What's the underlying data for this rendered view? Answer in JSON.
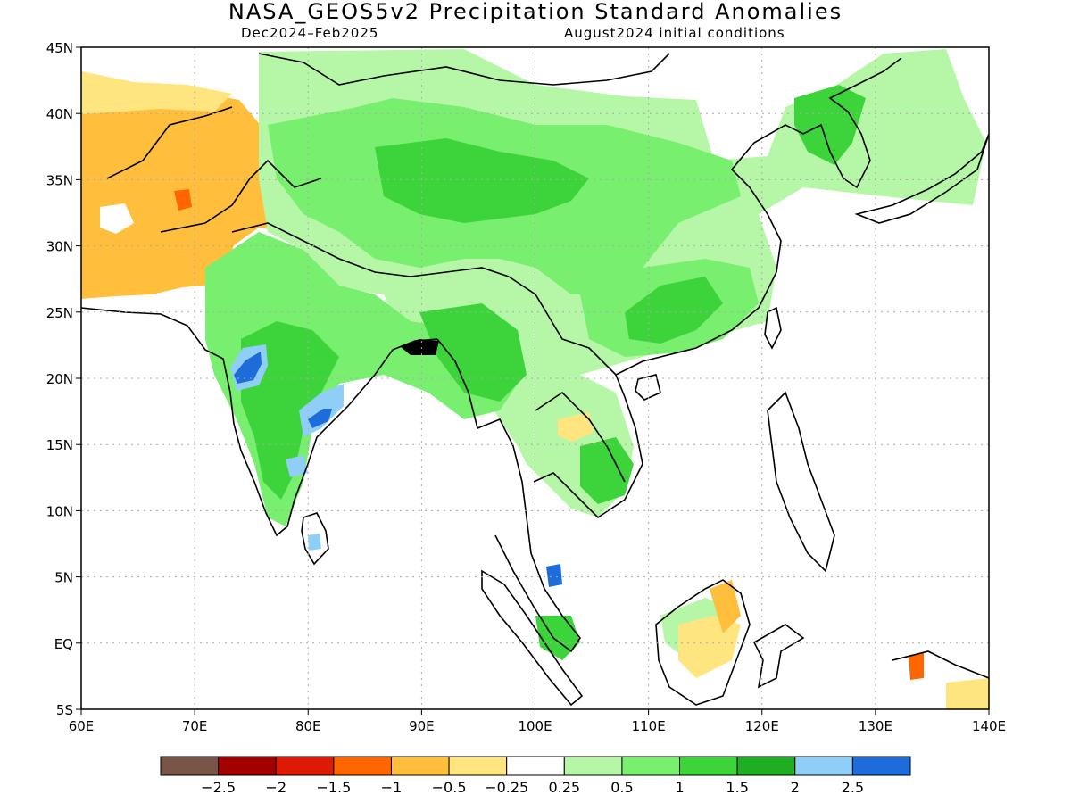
{
  "title": "NASA_GEOS5v2 Precipitation Standard Anomalies",
  "subtitle_left": "Dec2024–Feb2025",
  "subtitle_right": "August2024 initial conditions",
  "map": {
    "lon_range": [
      60,
      140
    ],
    "lat_range": [
      -5,
      45
    ],
    "lon_ticks": [
      {
        "value": 60,
        "label": "60E"
      },
      {
        "value": 70,
        "label": "70E"
      },
      {
        "value": 80,
        "label": "80E"
      },
      {
        "value": 90,
        "label": "90E"
      },
      {
        "value": 100,
        "label": "100E"
      },
      {
        "value": 110,
        "label": "110E"
      },
      {
        "value": 120,
        "label": "120E"
      },
      {
        "value": 130,
        "label": "130E"
      },
      {
        "value": 140,
        "label": "140E"
      }
    ],
    "lat_ticks": [
      {
        "value": 45,
        "label": "45N"
      },
      {
        "value": 40,
        "label": "40N"
      },
      {
        "value": 35,
        "label": "35N"
      },
      {
        "value": 30,
        "label": "30N"
      },
      {
        "value": 25,
        "label": "25N"
      },
      {
        "value": 20,
        "label": "20N"
      },
      {
        "value": 15,
        "label": "15N"
      },
      {
        "value": 10,
        "label": "10N"
      },
      {
        "value": 5,
        "label": "5N"
      },
      {
        "value": 0,
        "label": "EQ"
      },
      {
        "value": -5,
        "label": "5S"
      }
    ],
    "grid": "dotted"
  },
  "colorbar": {
    "colors": [
      "#795548",
      "#a30000",
      "#dc1a05",
      "#ff6600",
      "#ffbf3c",
      "#ffe57f",
      "#ffffff",
      "#b5f7a7",
      "#78ef6e",
      "#3cd43a",
      "#1fad24",
      "#8fcff7",
      "#1e6cd9"
    ],
    "labels": [
      "−2.5",
      "−2",
      "−1.5",
      "−1",
      "−0.5",
      "−0.25",
      "0.25",
      "0.5",
      "1",
      "1.5",
      "2",
      "2.5"
    ]
  }
}
